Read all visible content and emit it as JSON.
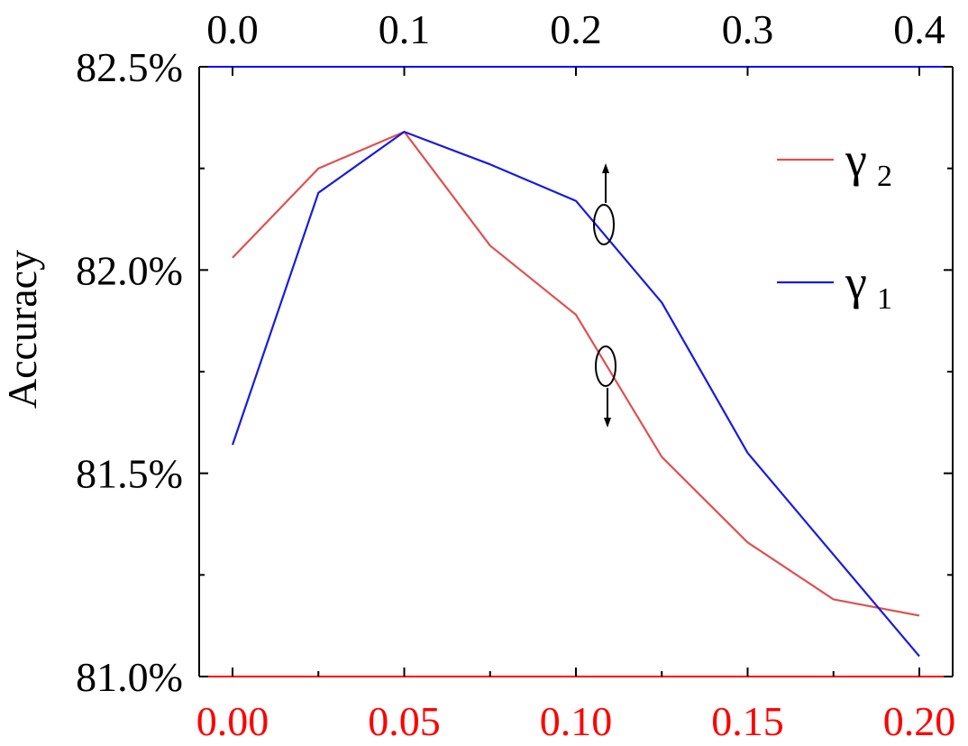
{
  "chart_data": {
    "type": "line",
    "ylabel": "Accuracy",
    "ylim": [
      81.0,
      82.5
    ],
    "yticks": [
      "81.0%",
      "81.5%",
      "82.0%",
      "82.5%"
    ],
    "bottom_axis": {
      "lim": [
        0.0,
        0.2
      ],
      "ticks": [
        "0.00",
        "0.05",
        "0.10",
        "0.15",
        "0.20"
      ],
      "color": "#ff0000"
    },
    "top_axis": {
      "lim": [
        0.0,
        0.4
      ],
      "ticks": [
        "0.0",
        "0.1",
        "0.2",
        "0.3",
        "0.4"
      ],
      "color": "#0000ff"
    },
    "series": [
      {
        "name": "γ2",
        "symbol": "γ",
        "subscript": "2",
        "axis": "bottom",
        "color": "#e05050",
        "x": [
          0.0,
          0.025,
          0.05,
          0.075,
          0.1,
          0.125,
          0.15,
          0.175,
          0.2
        ],
        "y": [
          82.03,
          82.25,
          82.34,
          82.06,
          81.89,
          81.54,
          81.33,
          81.19,
          81.15
        ]
      },
      {
        "name": "γ1",
        "symbol": "γ",
        "subscript": "1",
        "axis": "top",
        "color": "#1a1adf",
        "x": [
          0.0,
          0.05,
          0.1,
          0.15,
          0.2,
          0.25,
          0.3,
          0.35,
          0.4
        ],
        "y": [
          81.57,
          82.19,
          82.34,
          82.26,
          82.17,
          81.92,
          81.55,
          81.3,
          81.05
        ]
      }
    ],
    "legend": {
      "position": "top-right"
    },
    "grid": false
  }
}
